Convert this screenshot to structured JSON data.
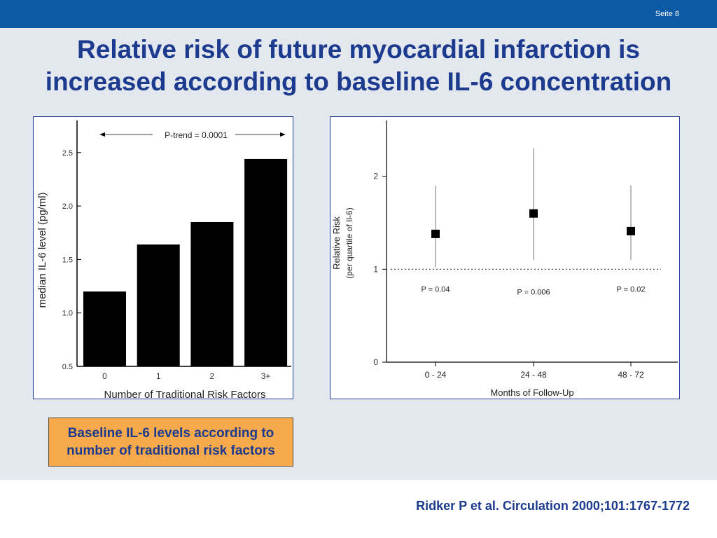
{
  "header": {
    "page_number": "Seite 8"
  },
  "title": {
    "line1": "Relative risk of future myocardial infarction is",
    "line2": "increased according to baseline IL-6 concentration"
  },
  "caption": "Baseline IL-6 levels according to number of traditional risk factors",
  "citation": "Ridker P et al. Circulation 2000;101:1767-1772",
  "colors": {
    "header_bar": "#0a5aa5",
    "title_text": "#1c3a8e",
    "caption_box": "#f7aa4c",
    "bars": "#000000"
  },
  "chart_data": [
    {
      "type": "bar",
      "categories": [
        "0",
        "1",
        "2",
        "3+"
      ],
      "values": [
        1.2,
        1.64,
        1.85,
        2.44
      ],
      "xlabel": "Number of Traditional Risk Factors",
      "ylabel": "median IL-6 level (pg/ml)",
      "ylim": [
        0.5,
        2.8
      ],
      "yticks": [
        "0.5",
        "1.0",
        "1.5",
        "2.0",
        "2.5"
      ],
      "annotation": "P-trend = 0.0001",
      "grid": false
    },
    {
      "type": "scatter",
      "categories": [
        "0 - 24",
        "24 - 48",
        "48 - 72"
      ],
      "values": [
        1.38,
        1.6,
        1.41
      ],
      "ci_low": [
        1.02,
        1.1,
        1.1
      ],
      "ci_high": [
        1.9,
        2.3,
        1.9
      ],
      "p_values": [
        "P = 0.04",
        "P = 0.006",
        "P = 0.02"
      ],
      "xlabel": "Months of Follow-Up",
      "ylabel_line1": "Relative Risk",
      "ylabel_line2": "(per quartile of Il-6)",
      "ylim": [
        0,
        2.6
      ],
      "yticks": [
        "0",
        "1",
        "2"
      ],
      "reference_line": 1,
      "grid": false
    }
  ]
}
